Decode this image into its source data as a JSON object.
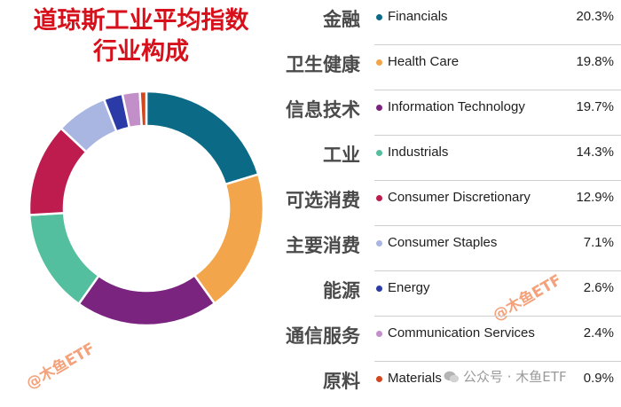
{
  "chart_data": {
    "type": "pie",
    "title_lines": [
      "道琼斯工业平均指数",
      "行业构成"
    ],
    "slices": [
      {
        "label_cn": "金融",
        "label": "Financials",
        "value": 20.3,
        "value_text": "20.3%",
        "color": "#0b6b86"
      },
      {
        "label_cn": "卫生健康",
        "label": "Health Care",
        "value": 19.8,
        "value_text": "19.8%",
        "color": "#f2a54a"
      },
      {
        "label_cn": "信息技术",
        "label": "Information Technology",
        "value": 19.7,
        "value_text": "19.7%",
        "color": "#7a237f"
      },
      {
        "label_cn": "工业",
        "label": "Industrials",
        "value": 14.3,
        "value_text": "14.3%",
        "color": "#54bf9e"
      },
      {
        "label_cn": "可选消费",
        "label": "Consumer Discretionary",
        "value": 12.9,
        "value_text": "12.9%",
        "color": "#be1c4e"
      },
      {
        "label_cn": "主要消费",
        "label": "Consumer Staples",
        "value": 7.1,
        "value_text": "7.1%",
        "color": "#aab6e2"
      },
      {
        "label_cn": "能源",
        "label": "Energy",
        "value": 2.6,
        "value_text": "2.6%",
        "color": "#2a3aa6"
      },
      {
        "label_cn": "通信服务",
        "label": "Communication Services",
        "value": 2.4,
        "value_text": "2.4%",
        "color": "#c38fc9"
      },
      {
        "label_cn": "原料",
        "label": "Materials",
        "value": 0.9,
        "value_text": "0.9%",
        "color": "#d3461e"
      }
    ]
  },
  "watermark": {
    "text": "@木鱼ETF",
    "footer": "公众号 · 木鱼ETF"
  }
}
